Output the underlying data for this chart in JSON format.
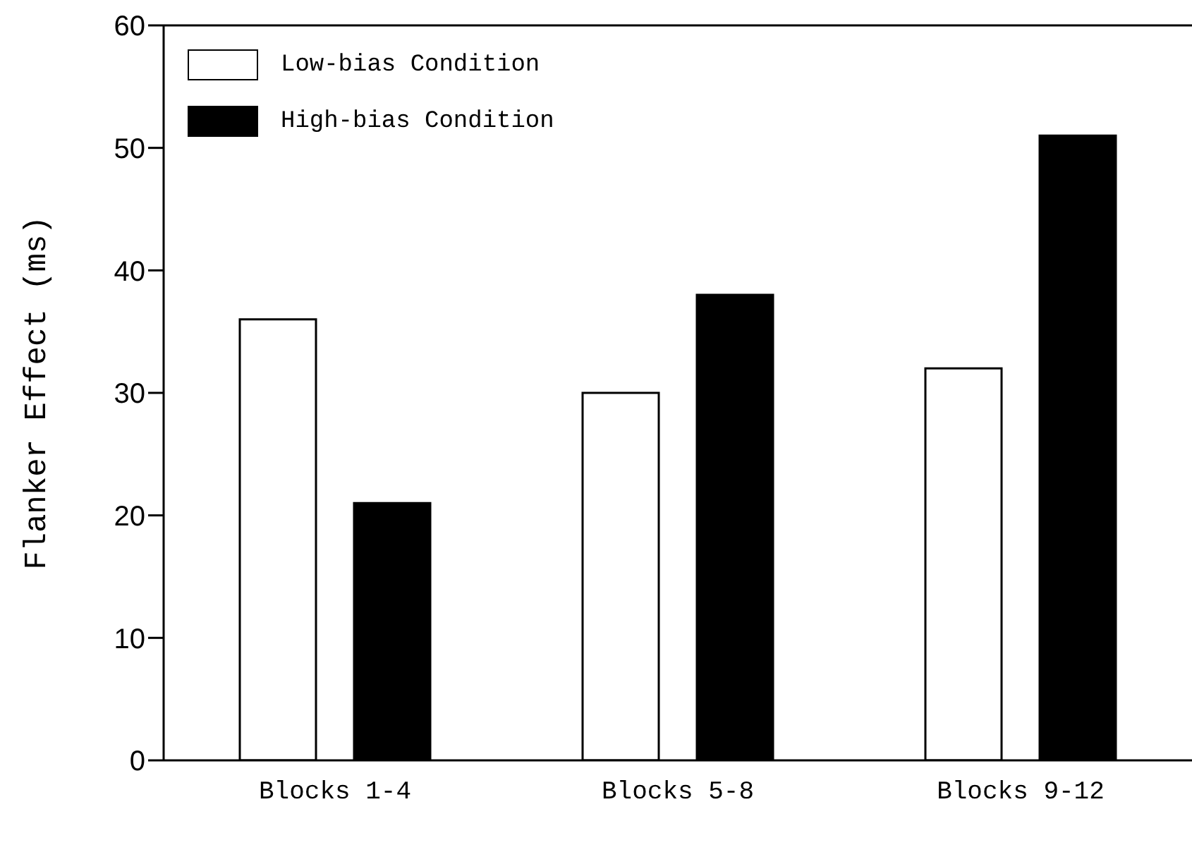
{
  "chart_data": {
    "type": "bar",
    "ylabel": "Flanker Effect (ms)",
    "categories": [
      "Blocks 1-4",
      "Blocks 5-8",
      "Blocks 9-12"
    ],
    "series": [
      {
        "name": "Low-bias Condition",
        "color": "#ffffff",
        "values": [
          36,
          30,
          32
        ]
      },
      {
        "name": "High-bias Condition",
        "color": "#000000",
        "values": [
          21,
          38,
          51
        ]
      }
    ],
    "ylim": [
      0,
      60
    ],
    "yticks": [
      0,
      10,
      20,
      30,
      40,
      50,
      60
    ],
    "legend": "top left"
  }
}
